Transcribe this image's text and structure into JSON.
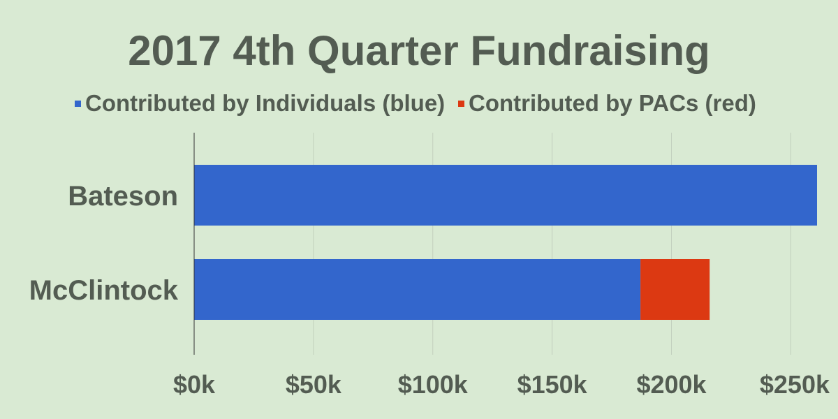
{
  "chart_data": {
    "type": "bar",
    "orientation": "horizontal",
    "stacked": true,
    "title": "2017 4th Quarter Fundraising",
    "xlabel": "",
    "ylabel": "",
    "categories": [
      "Bateson",
      "McClintock"
    ],
    "series": [
      {
        "name": "Contributed by Individuals (blue)",
        "color": "#3366cc",
        "values": [
          261000,
          187000
        ]
      },
      {
        "name": "Contributed by PACs (red)",
        "color": "#dc3912",
        "values": [
          0,
          29000
        ]
      }
    ],
    "xlim": [
      0,
      261000
    ],
    "xticks": [
      0,
      50000,
      100000,
      150000,
      200000,
      250000
    ],
    "tick_labels": [
      "$0k",
      "$50k",
      "$100k",
      "$150k",
      "$200k",
      "$250k"
    ],
    "grid": "vertical",
    "legend_position": "top",
    "colors": {
      "background": "#d9ead3",
      "text": "#535c52",
      "gridline": "#c2cfbd",
      "axis": "#333333"
    }
  }
}
